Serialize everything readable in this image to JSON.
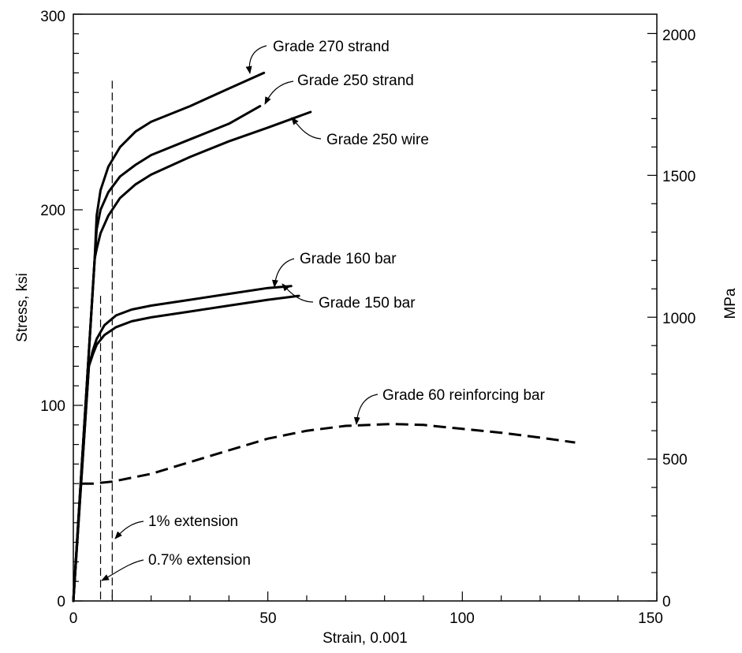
{
  "chart_data": {
    "type": "line",
    "xlabel": "Strain, 0.001",
    "ylabel": "Stress, ksi",
    "y2label": "MPa",
    "xlim": [
      0,
      150
    ],
    "ylim": [
      0,
      300
    ],
    "y2lim": [
      0,
      2068
    ],
    "x_ticks": [
      "0",
      "50",
      "100",
      "150"
    ],
    "y_ticks": [
      "0",
      "100",
      "200",
      "300"
    ],
    "y2_ticks": [
      "0",
      "500",
      "1000",
      "1500",
      "2000"
    ],
    "grid": false,
    "legend": "none",
    "series": [
      {
        "name": "Grade 270 strand",
        "style": "solid",
        "points": [
          [
            0,
            0
          ],
          [
            5.5,
            175
          ],
          [
            6,
            197
          ],
          [
            7,
            210
          ],
          [
            9,
            222
          ],
          [
            12,
            232
          ],
          [
            16,
            240
          ],
          [
            20,
            245
          ],
          [
            30,
            253
          ],
          [
            40,
            262
          ],
          [
            49,
            270
          ]
        ]
      },
      {
        "name": "Grade 250 strand",
        "style": "solid",
        "points": [
          [
            0,
            0
          ],
          [
            5.5,
            175
          ],
          [
            6,
            190
          ],
          [
            7,
            200
          ],
          [
            9,
            209
          ],
          [
            12,
            217
          ],
          [
            16,
            223
          ],
          [
            20,
            228
          ],
          [
            30,
            236
          ],
          [
            40,
            244
          ],
          [
            48,
            253
          ]
        ]
      },
      {
        "name": "Grade 250 wire",
        "style": "solid",
        "points": [
          [
            0,
            0
          ],
          [
            5.5,
            175
          ],
          [
            6,
            180
          ],
          [
            7,
            188
          ],
          [
            9,
            197
          ],
          [
            12,
            206
          ],
          [
            16,
            213
          ],
          [
            20,
            218
          ],
          [
            30,
            227
          ],
          [
            40,
            235
          ],
          [
            50,
            242
          ],
          [
            61,
            250
          ]
        ]
      },
      {
        "name": "Grade 160 bar",
        "style": "solid",
        "points": [
          [
            0,
            0
          ],
          [
            4,
            120
          ],
          [
            5,
            128
          ],
          [
            6,
            134
          ],
          [
            8,
            141
          ],
          [
            11,
            146
          ],
          [
            15,
            149
          ],
          [
            20,
            151
          ],
          [
            30,
            154
          ],
          [
            40,
            157
          ],
          [
            50,
            160
          ],
          [
            56,
            161
          ]
        ]
      },
      {
        "name": "Grade 150 bar",
        "style": "solid",
        "points": [
          [
            0,
            0
          ],
          [
            4,
            120
          ],
          [
            5,
            126
          ],
          [
            6,
            131
          ],
          [
            8,
            136
          ],
          [
            11,
            140
          ],
          [
            15,
            143
          ],
          [
            20,
            145
          ],
          [
            30,
            148
          ],
          [
            40,
            151
          ],
          [
            50,
            154
          ],
          [
            58,
            156
          ]
        ]
      },
      {
        "name": "Grade 60 reinforcing bar",
        "style": "dashed",
        "points": [
          [
            2,
            60
          ],
          [
            5,
            60
          ],
          [
            10,
            61
          ],
          [
            20,
            65
          ],
          [
            30,
            71
          ],
          [
            40,
            77
          ],
          [
            50,
            83
          ],
          [
            60,
            87
          ],
          [
            70,
            89.5
          ],
          [
            82,
            90.5
          ],
          [
            90,
            90
          ],
          [
            100,
            88
          ],
          [
            110,
            86
          ],
          [
            120,
            83.5
          ],
          [
            129,
            81
          ]
        ]
      }
    ],
    "reference_lines": [
      {
        "label": "1% extension",
        "x": 10,
        "y_top": 266
      },
      {
        "label": "0.7% extension",
        "x": 7,
        "y_top": 156
      }
    ],
    "annotations": [
      "Grade 270 strand",
      "Grade 250 strand",
      "Grade 250 wire",
      "Grade 160 bar",
      "Grade 150 bar",
      "Grade 60 reinforcing bar",
      "1% extension",
      "0.7% extension"
    ]
  }
}
